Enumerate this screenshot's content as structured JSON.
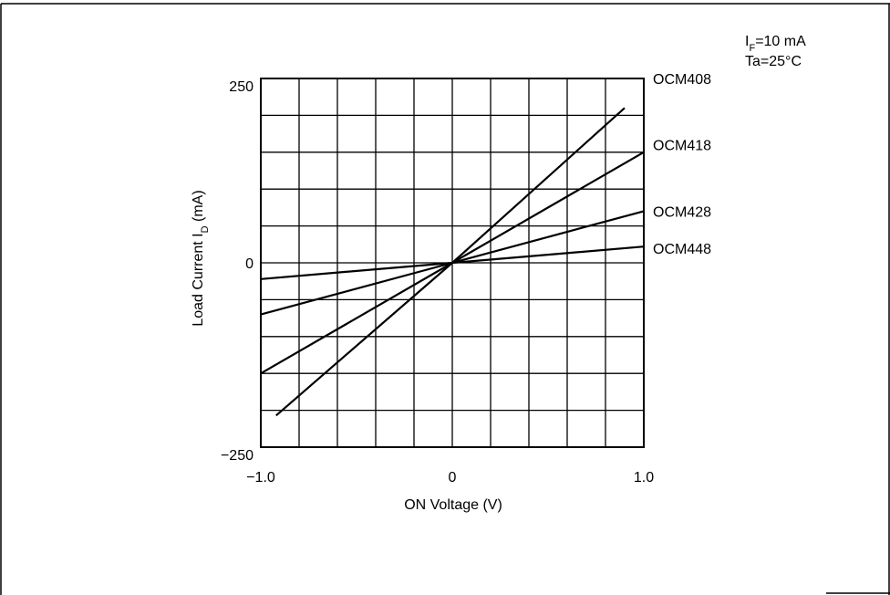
{
  "chart_data": {
    "type": "line",
    "title": "",
    "xlabel": "ON Voltage (V)",
    "ylabel_main": "Load Current  I",
    "ylabel_sub": "D",
    "ylabel_unit": " (mA)",
    "xlim": [
      -1.0,
      1.0
    ],
    "ylim": [
      -250,
      250
    ],
    "x_ticks": [
      {
        "value": -1.0,
        "label": "−1.0"
      },
      {
        "value": 0,
        "label": "0"
      },
      {
        "value": 1.0,
        "label": "1.0"
      }
    ],
    "y_ticks": [
      {
        "value": 250,
        "label": "250"
      },
      {
        "value": 0,
        "label": "0"
      },
      {
        "value": -250,
        "label": "−250"
      }
    ],
    "grid": true,
    "grid_x_divisions": 10,
    "grid_y_divisions": 10,
    "conditions": {
      "line1_main": "I",
      "line1_sub": "F",
      "line1_rest": "=10 mA",
      "line2": "Ta=25°C"
    },
    "series": [
      {
        "name": "OCM408",
        "x": [
          -0.92,
          0,
          0.9
        ],
        "y": [
          -207,
          0,
          210
        ]
      },
      {
        "name": "OCM418",
        "x": [
          -1.0,
          0,
          1.0
        ],
        "y": [
          -150,
          0,
          150
        ]
      },
      {
        "name": "OCM428",
        "x": [
          -1.0,
          0,
          1.0
        ],
        "y": [
          -70,
          0,
          70
        ]
      },
      {
        "name": "OCM448",
        "x": [
          -1.0,
          0,
          1.0
        ],
        "y": [
          -22,
          0,
          22
        ]
      }
    ],
    "series_label_values": [
      250,
      160,
      70,
      20
    ]
  }
}
